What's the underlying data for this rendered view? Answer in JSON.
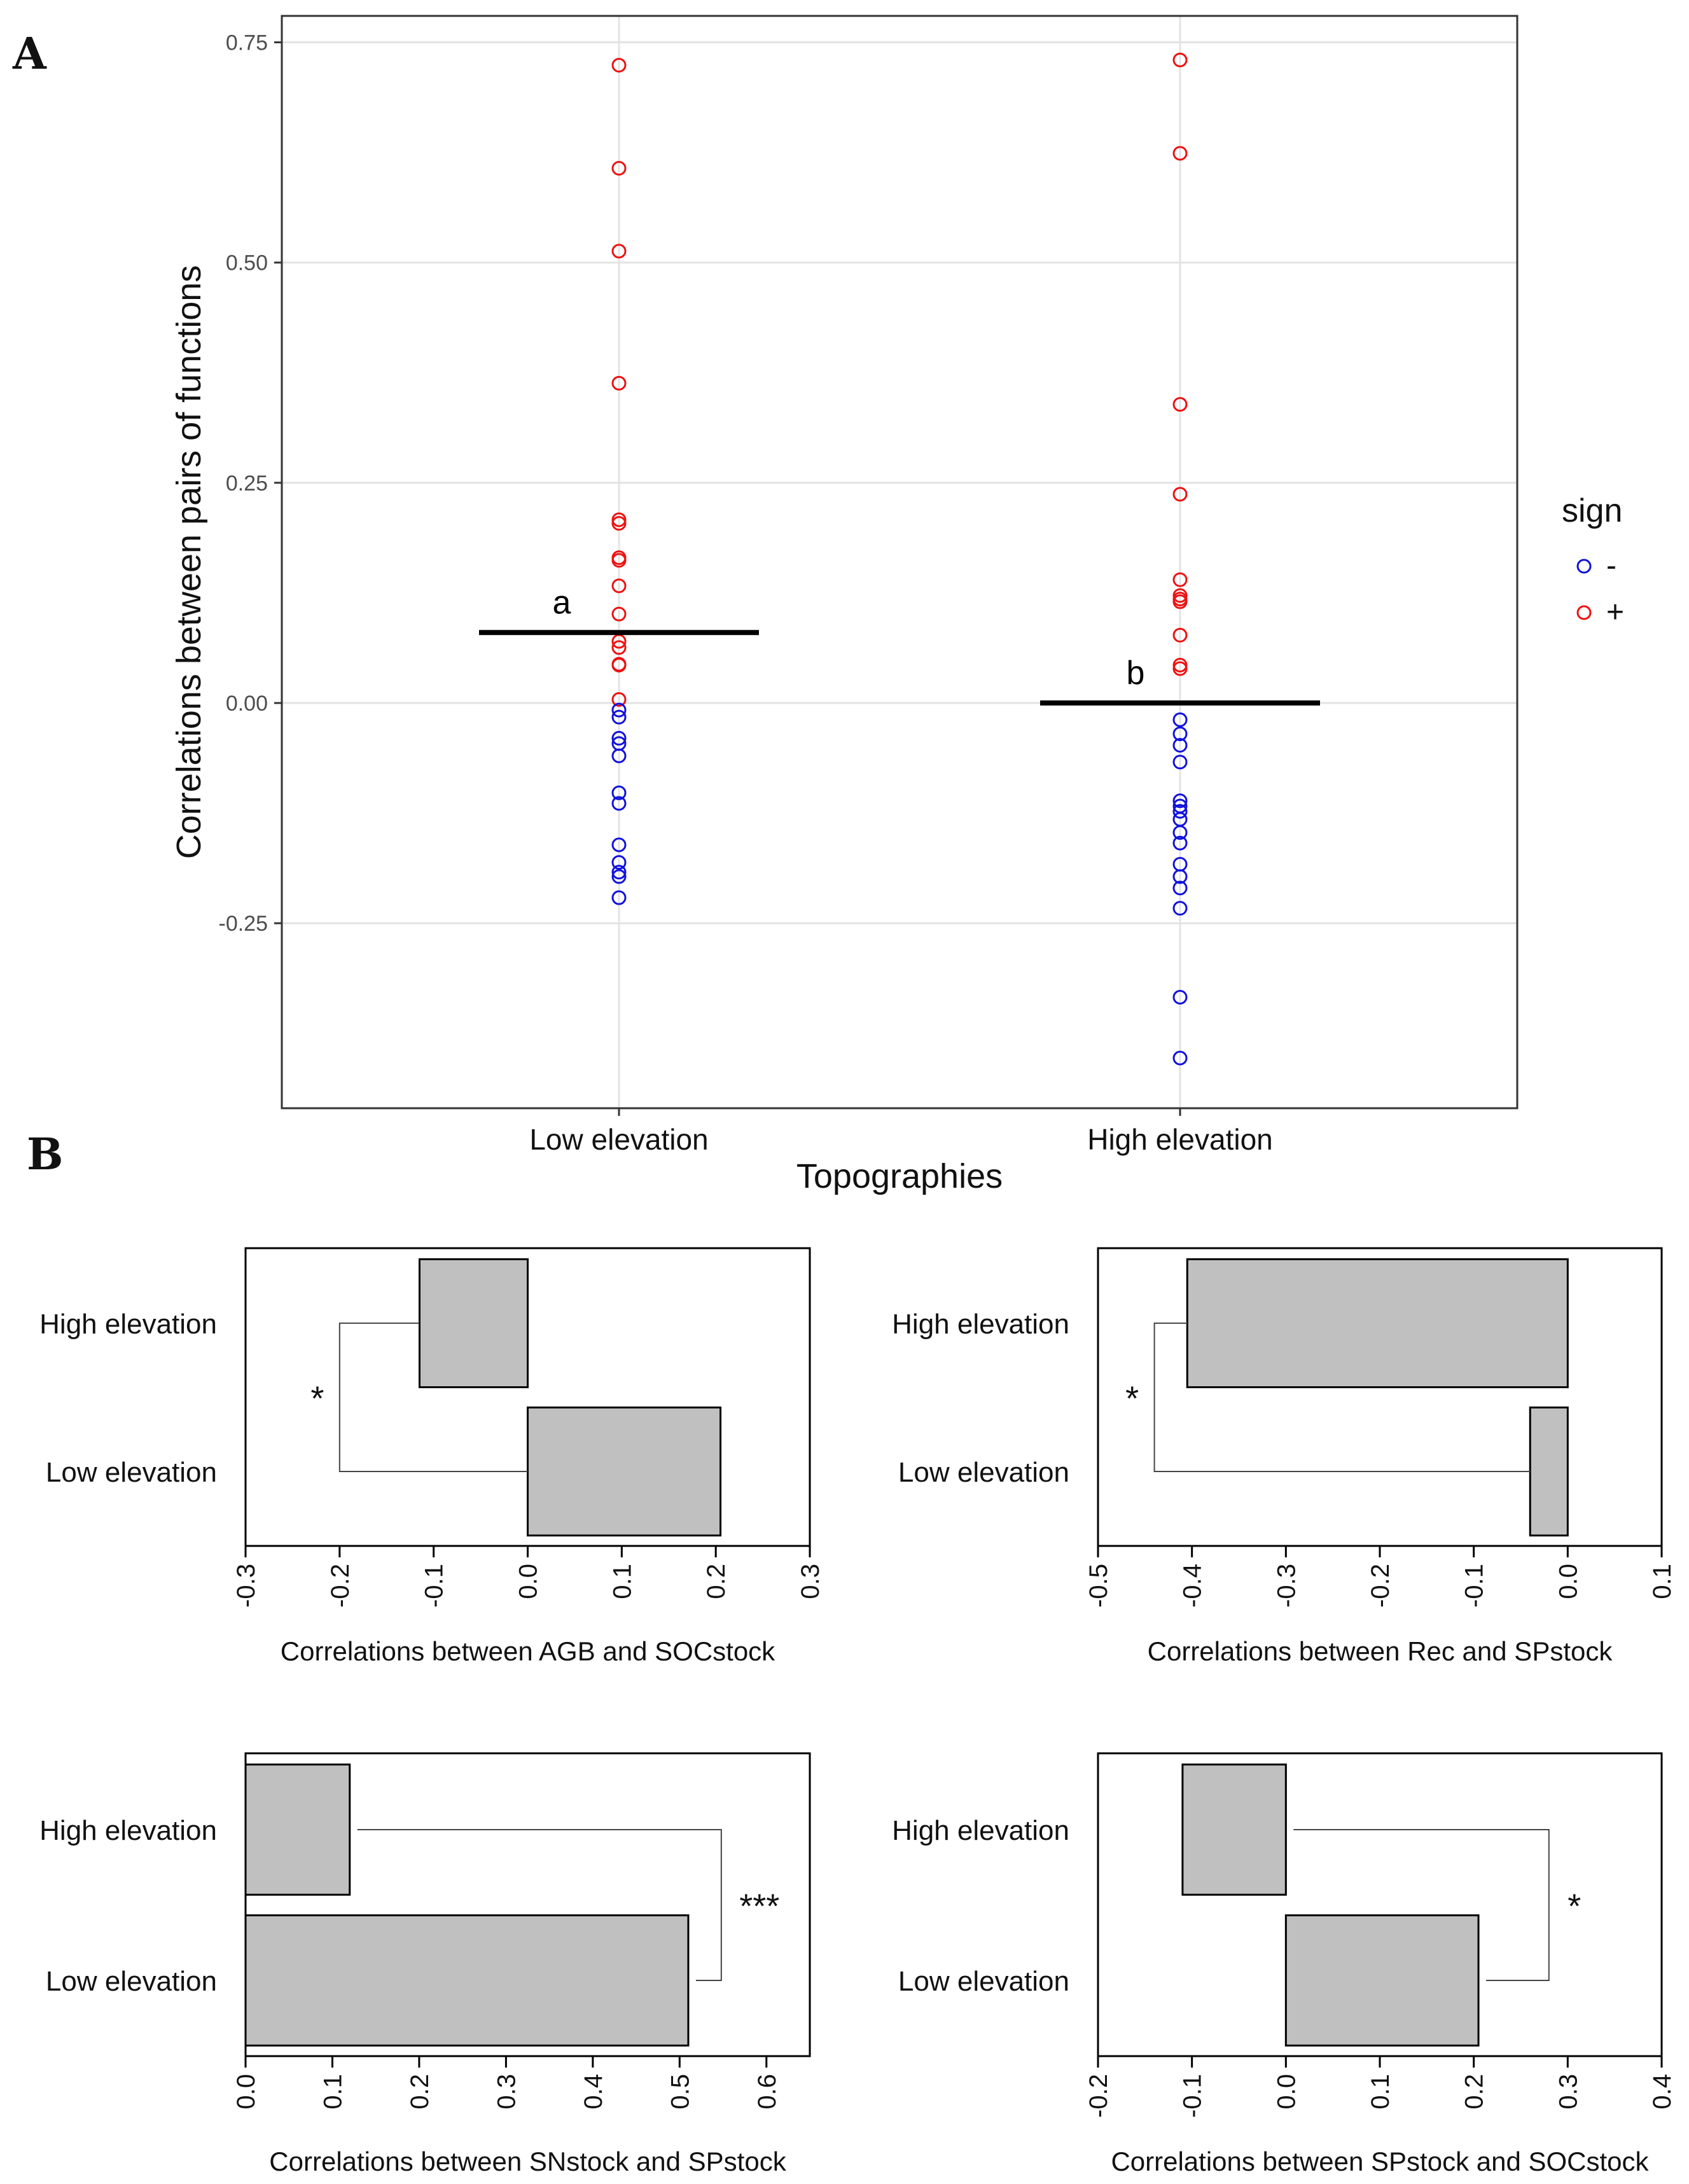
{
  "panel_labels": {
    "a": "A",
    "b": "B"
  },
  "colors": {
    "negative": "#1111dd",
    "positive": "#ee1111",
    "bar_fill": "#c0c0c0",
    "grid": "#e3e3e3"
  },
  "chart_data": [
    {
      "type": "scatter",
      "id": "A",
      "xlabel": "Topographies",
      "ylabel": "Correlations between pairs of functions",
      "categories": [
        "Low elevation",
        "High elevation"
      ],
      "ylim": [
        -0.46,
        0.78
      ],
      "yticks": [
        -0.25,
        0.0,
        0.25,
        0.5,
        0.75
      ],
      "ytick_labels": [
        "-0.25",
        "0.00",
        "0.25",
        "0.50",
        "0.75"
      ],
      "legend": {
        "title": "sign",
        "position": "right",
        "entries": [
          {
            "label": "-",
            "color": "#1111dd"
          },
          {
            "label": "+",
            "color": "#ee1111"
          }
        ]
      },
      "mean_lines": [
        {
          "category": "Low elevation",
          "value": 0.08,
          "label": "a"
        },
        {
          "category": "High elevation",
          "value": 0.0,
          "label": "b"
        }
      ],
      "series": [
        {
          "name": "Low elevation",
          "values": [
            0.724,
            0.607,
            0.513,
            0.363,
            0.208,
            0.204,
            0.165,
            0.162,
            0.133,
            0.101,
            0.07,
            0.063,
            0.044,
            0.043,
            0.004,
            -0.008,
            -0.016,
            -0.04,
            -0.046,
            -0.06,
            -0.102,
            -0.114,
            -0.161,
            -0.181,
            -0.192,
            -0.197,
            -0.221
          ]
        },
        {
          "name": "High elevation",
          "values": [
            0.73,
            0.624,
            0.339,
            0.237,
            0.14,
            0.122,
            0.118,
            0.115,
            0.077,
            0.043,
            0.039,
            -0.019,
            -0.035,
            -0.048,
            -0.067,
            -0.111,
            -0.117,
            -0.123,
            -0.132,
            -0.147,
            -0.159,
            -0.183,
            -0.197,
            -0.21,
            -0.233,
            -0.334,
            -0.403
          ]
        }
      ]
    },
    {
      "type": "bar",
      "id": "B1",
      "orientation": "horizontal",
      "xlabel": "Correlations between AGB and SOCstock",
      "categories": [
        "High elevation",
        "Low elevation"
      ],
      "values": [
        -0.115,
        0.205
      ],
      "xlim": [
        -0.3,
        0.3
      ],
      "xticks": [
        -0.3,
        -0.2,
        -0.1,
        0.0,
        0.1,
        0.2,
        0.3
      ],
      "xtick_labels": [
        "-0.3",
        "-0.2",
        "-0.1",
        "0.0",
        "0.1",
        "0.2",
        "0.3"
      ],
      "significance": "*",
      "bracket_side": "left",
      "bracket_x": -0.2
    },
    {
      "type": "bar",
      "id": "B2",
      "orientation": "horizontal",
      "xlabel": "Correlations between Rec and SPstock",
      "categories": [
        "High elevation",
        "Low elevation"
      ],
      "values": [
        -0.405,
        -0.04
      ],
      "xlim": [
        -0.5,
        0.1
      ],
      "xticks": [
        -0.5,
        -0.4,
        -0.3,
        -0.2,
        -0.1,
        0.0,
        0.1
      ],
      "xtick_labels": [
        "-0.5",
        "-0.4",
        "-0.3",
        "-0.2",
        "-0.1",
        "0.0",
        "0.1"
      ],
      "significance": "*",
      "bracket_side": "left",
      "bracket_x": -0.44
    },
    {
      "type": "bar",
      "id": "B3",
      "orientation": "horizontal",
      "xlabel": "Correlations between SNstock and SPstock",
      "categories": [
        "High elevation",
        "Low elevation"
      ],
      "values": [
        0.12,
        0.51
      ],
      "xlim": [
        0.0,
        0.65
      ],
      "xticks": [
        0.0,
        0.1,
        0.2,
        0.3,
        0.4,
        0.5,
        0.6
      ],
      "xtick_labels": [
        "0.0",
        "0.1",
        "0.2",
        "0.3",
        "0.4",
        "0.5",
        "0.6"
      ],
      "significance": "***",
      "bracket_side": "right",
      "bracket_x": 0.548
    },
    {
      "type": "bar",
      "id": "B4",
      "orientation": "horizontal",
      "xlabel": "Correlations between SPstock and SOCstock",
      "categories": [
        "High elevation",
        "Low elevation"
      ],
      "values": [
        -0.11,
        0.205
      ],
      "xlim": [
        -0.2,
        0.4
      ],
      "xticks": [
        -0.2,
        -0.1,
        0.0,
        0.1,
        0.2,
        0.3,
        0.4
      ],
      "xtick_labels": [
        "-0.2",
        "-0.1",
        "0.0",
        "0.1",
        "0.2",
        "0.3",
        "0.4"
      ],
      "significance": "*",
      "bracket_side": "right",
      "bracket_x": 0.28
    }
  ]
}
